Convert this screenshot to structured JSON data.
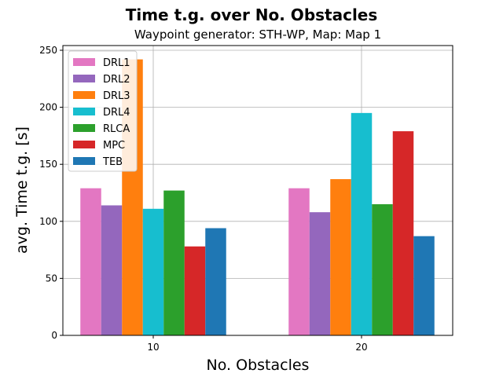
{
  "chart_data": {
    "type": "bar",
    "title": "Time t.g. over No. Obstacles",
    "subtitle": "Waypoint generator: STH-WP, Map: Map 1",
    "xlabel": "No. Obstacles",
    "ylabel": "avg. Time t.g. [s]",
    "categories": [
      "10",
      "20"
    ],
    "ylim": [
      0,
      250
    ],
    "yticks": [
      0,
      50,
      100,
      150,
      200,
      250
    ],
    "grid": true,
    "legend_position": "top-left",
    "series": [
      {
        "name": "DRL1",
        "color": "#e377c2",
        "values": [
          129,
          129
        ]
      },
      {
        "name": "DRL2",
        "color": "#9467bd",
        "values": [
          114,
          108
        ]
      },
      {
        "name": "DRL3",
        "color": "#ff7f0e",
        "values": [
          242,
          137
        ]
      },
      {
        "name": "DRL4",
        "color": "#17becf",
        "values": [
          111,
          195
        ]
      },
      {
        "name": "RLCA",
        "color": "#2ca02c",
        "values": [
          127,
          115
        ]
      },
      {
        "name": "MPC",
        "color": "#d62728",
        "values": [
          78,
          179
        ]
      },
      {
        "name": "TEB",
        "color": "#1f77b4",
        "values": [
          94,
          87
        ]
      }
    ]
  }
}
